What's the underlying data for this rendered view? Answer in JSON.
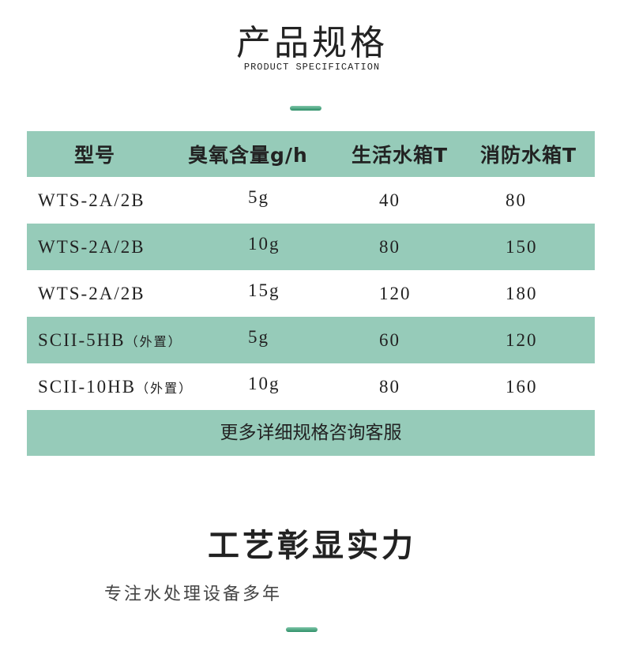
{
  "header": {
    "title": "产品规格",
    "subtitle": "PRODUCT SPECIFICATION"
  },
  "table": {
    "columns": [
      "型号",
      "臭氧含量g/h",
      "生活水箱T",
      "消防水箱T"
    ],
    "rows": [
      {
        "model": "WTS-2A/2B",
        "note": "",
        "ozone": "5g",
        "domestic": "40",
        "fire": "80"
      },
      {
        "model": "WTS-2A/2B",
        "note": "",
        "ozone": "10g",
        "domestic": "80",
        "fire": "150"
      },
      {
        "model": "WTS-2A/2B",
        "note": "",
        "ozone": "15g",
        "domestic": "120",
        "fire": "180"
      },
      {
        "model": "SCII-5HB",
        "note": "（外置）",
        "ozone": "5g",
        "domestic": "60",
        "fire": "120"
      },
      {
        "model": "SCII-10HB",
        "note": "（外置）",
        "ozone": "10g",
        "domestic": "80",
        "fire": "160"
      }
    ],
    "footer": "更多详细规格咨询客服"
  },
  "section2": {
    "title": "工艺彰显实力",
    "subtitle": "专注水处理设备多年"
  },
  "colors": {
    "teal": "#96cbb9",
    "accent": "#2e8f68"
  }
}
